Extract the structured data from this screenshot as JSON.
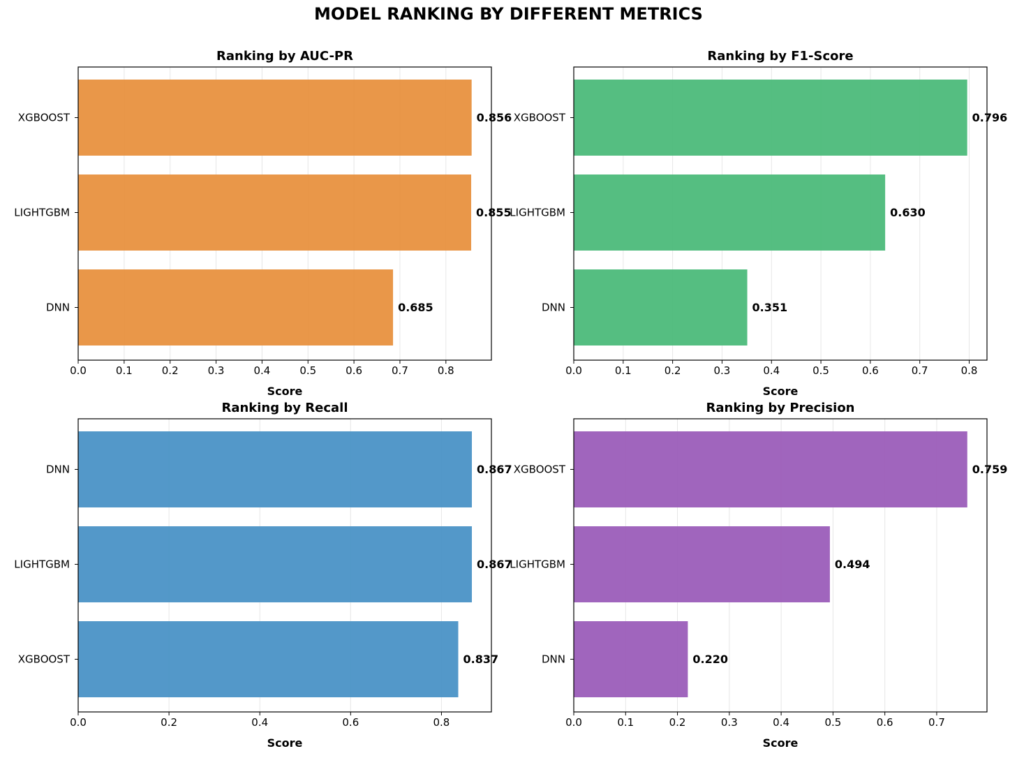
{
  "figure": {
    "title": "MODEL RANKING BY DIFFERENT METRICS"
  },
  "chart_data": [
    {
      "type": "bar",
      "orientation": "horizontal",
      "title": "Ranking by AUC-PR",
      "xlabel": "Score",
      "ylabel": "",
      "categories": [
        "XGBOOST",
        "LIGHTGBM",
        "DNN"
      ],
      "values": [
        0.856,
        0.855,
        0.685
      ],
      "value_labels": [
        "0.856",
        "0.855",
        "0.685"
      ],
      "xlim": [
        0,
        0.899
      ],
      "xticks": [
        0.0,
        0.1,
        0.2,
        0.3,
        0.4,
        0.5,
        0.6,
        0.7,
        0.8
      ],
      "xtick_labels": [
        "0.0",
        "0.1",
        "0.2",
        "0.3",
        "0.4",
        "0.5",
        "0.6",
        "0.7",
        "0.8"
      ],
      "color": "#e8913f",
      "grid": "x"
    },
    {
      "type": "bar",
      "orientation": "horizontal",
      "title": "Ranking by F1-Score",
      "xlabel": "Score",
      "ylabel": "",
      "categories": [
        "XGBOOST",
        "LIGHTGBM",
        "DNN"
      ],
      "values": [
        0.796,
        0.63,
        0.351
      ],
      "value_labels": [
        "0.796",
        "0.630",
        "0.351"
      ],
      "xlim": [
        0,
        0.836
      ],
      "xticks": [
        0.0,
        0.1,
        0.2,
        0.3,
        0.4,
        0.5,
        0.6,
        0.7,
        0.8
      ],
      "xtick_labels": [
        "0.0",
        "0.1",
        "0.2",
        "0.3",
        "0.4",
        "0.5",
        "0.6",
        "0.7",
        "0.8"
      ],
      "color": "#4cbb7a",
      "grid": "x"
    },
    {
      "type": "bar",
      "orientation": "horizontal",
      "title": "Ranking by Recall",
      "xlabel": "Score",
      "ylabel": "",
      "categories": [
        "DNN",
        "LIGHTGBM",
        "XGBOOST"
      ],
      "values": [
        0.867,
        0.867,
        0.837
      ],
      "value_labels": [
        "0.867",
        "0.867",
        "0.837"
      ],
      "xlim": [
        0,
        0.91
      ],
      "xticks": [
        0.0,
        0.2,
        0.4,
        0.6,
        0.8
      ],
      "xtick_labels": [
        "0.0",
        "0.2",
        "0.4",
        "0.6",
        "0.8"
      ],
      "color": "#4a92c6",
      "grid": "x"
    },
    {
      "type": "bar",
      "orientation": "horizontal",
      "title": "Ranking by Precision",
      "xlabel": "Score",
      "ylabel": "",
      "categories": [
        "XGBOOST",
        "LIGHTGBM",
        "DNN"
      ],
      "values": [
        0.759,
        0.494,
        0.22
      ],
      "value_labels": [
        "0.759",
        "0.494",
        "0.220"
      ],
      "xlim": [
        0,
        0.797
      ],
      "xticks": [
        0.0,
        0.1,
        0.2,
        0.3,
        0.4,
        0.5,
        0.6,
        0.7
      ],
      "xtick_labels": [
        "0.0",
        "0.1",
        "0.2",
        "0.3",
        "0.4",
        "0.5",
        "0.6",
        "0.7"
      ],
      "color": "#9b5db9",
      "grid": "x"
    }
  ]
}
